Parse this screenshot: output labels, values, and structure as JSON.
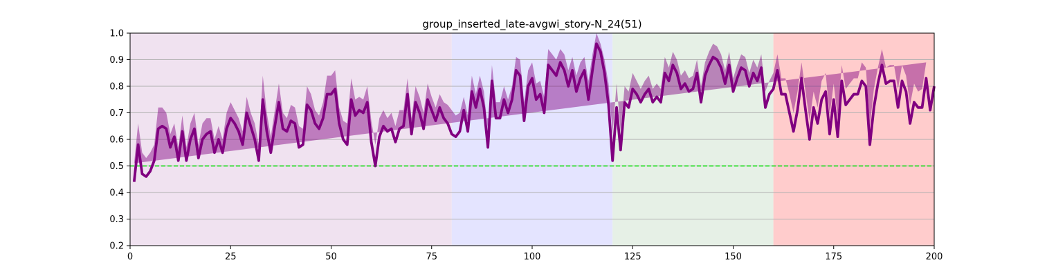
{
  "chart_data": {
    "type": "line",
    "title": "group_inserted_late-avgwi_story-N_24(51)",
    "xlabel": "",
    "ylabel": "",
    "xlim": [
      0,
      200
    ],
    "ylim": [
      0.2,
      1.0
    ],
    "xticks": [
      "0",
      "25",
      "50",
      "75",
      "100",
      "125",
      "150",
      "175",
      "200"
    ],
    "yticks": [
      "0.2",
      "0.3",
      "0.4",
      "0.5",
      "0.6",
      "0.7",
      "0.8",
      "0.9",
      "1.0"
    ],
    "grid": "horizontal",
    "legend": "none",
    "regions": [
      {
        "x0": 0,
        "x1": 80,
        "color": "#f0e2f0"
      },
      {
        "x0": 80,
        "x1": 120,
        "color": "#e4e4ff"
      },
      {
        "x0": 120,
        "x1": 160,
        "color": "#e6f0e6"
      },
      {
        "x0": 160,
        "x1": 200,
        "color": "#ffcccc"
      }
    ],
    "reference_line": {
      "y": 0.5,
      "color": "#22dd22",
      "style": "dashed"
    },
    "series": [
      {
        "line_color": "#800080",
        "band_color": "#800080",
        "x": [
          1,
          2,
          3,
          4,
          5,
          6,
          7,
          8,
          9,
          10,
          11,
          12,
          13,
          14,
          15,
          16,
          17,
          18,
          19,
          20,
          21,
          22,
          23,
          24,
          25,
          26,
          27,
          28,
          29,
          30,
          31,
          32,
          33,
          34,
          35,
          36,
          37,
          38,
          39,
          40,
          41,
          42,
          43,
          44,
          45,
          46,
          47,
          48,
          49,
          50,
          51,
          52,
          53,
          54,
          55,
          56,
          57,
          58,
          59,
          60,
          61,
          62,
          63,
          64,
          65,
          66,
          67,
          68,
          69,
          70,
          71,
          72,
          73,
          74,
          75,
          76,
          77,
          78,
          79,
          80,
          81,
          82,
          83,
          84,
          85,
          86,
          87,
          88,
          89,
          90,
          91,
          92,
          93,
          94,
          95,
          96,
          97,
          98,
          99,
          100,
          101,
          102,
          103,
          104,
          105,
          106,
          107,
          108,
          109,
          110,
          111,
          112,
          113,
          114,
          115,
          116,
          117,
          118,
          119,
          120,
          121,
          122,
          123,
          124,
          125,
          126,
          127,
          128,
          129,
          130,
          131,
          132,
          133,
          134,
          135,
          136,
          137,
          138,
          139,
          140,
          141,
          142,
          143,
          144,
          145,
          146,
          147,
          148,
          149,
          150,
          151,
          152,
          153,
          154,
          155,
          156,
          157,
          158,
          159,
          160,
          161,
          162,
          163,
          164,
          165,
          166,
          167,
          168,
          169,
          170,
          171,
          172,
          173,
          174,
          175,
          176,
          177,
          178,
          179,
          180,
          181,
          182,
          183,
          184,
          185,
          186,
          187,
          188,
          189,
          190,
          191,
          192,
          193,
          194,
          195,
          196,
          197,
          198,
          199,
          200
        ],
        "y": [
          0.44,
          0.58,
          0.47,
          0.46,
          0.48,
          0.52,
          0.64,
          0.65,
          0.64,
          0.57,
          0.61,
          0.52,
          0.63,
          0.52,
          0.6,
          0.64,
          0.53,
          0.6,
          0.62,
          0.63,
          0.55,
          0.6,
          0.55,
          0.64,
          0.68,
          0.66,
          0.63,
          0.58,
          0.7,
          0.65,
          0.6,
          0.52,
          0.75,
          0.63,
          0.55,
          0.65,
          0.74,
          0.64,
          0.63,
          0.67,
          0.66,
          0.57,
          0.58,
          0.73,
          0.71,
          0.66,
          0.64,
          0.68,
          0.77,
          0.77,
          0.79,
          0.66,
          0.6,
          0.58,
          0.75,
          0.69,
          0.71,
          0.7,
          0.74,
          0.59,
          0.5,
          0.61,
          0.65,
          0.63,
          0.64,
          0.59,
          0.64,
          0.65,
          0.77,
          0.62,
          0.74,
          0.7,
          0.64,
          0.75,
          0.71,
          0.67,
          0.72,
          0.68,
          0.66,
          0.62,
          0.61,
          0.63,
          0.71,
          0.63,
          0.78,
          0.72,
          0.79,
          0.72,
          0.57,
          0.82,
          0.68,
          0.68,
          0.75,
          0.7,
          0.75,
          0.86,
          0.84,
          0.67,
          0.8,
          0.83,
          0.75,
          0.77,
          0.7,
          0.88,
          0.86,
          0.84,
          0.89,
          0.86,
          0.8,
          0.86,
          0.78,
          0.83,
          0.86,
          0.75,
          0.86,
          0.96,
          0.93,
          0.85,
          0.73,
          0.52,
          0.72,
          0.56,
          0.74,
          0.72,
          0.79,
          0.77,
          0.74,
          0.77,
          0.79,
          0.74,
          0.76,
          0.74,
          0.85,
          0.82,
          0.88,
          0.85,
          0.79,
          0.81,
          0.78,
          0.79,
          0.85,
          0.74,
          0.84,
          0.88,
          0.91,
          0.9,
          0.87,
          0.81,
          0.88,
          0.78,
          0.83,
          0.87,
          0.86,
          0.8,
          0.85,
          0.82,
          0.87,
          0.72,
          0.77,
          0.79,
          0.86,
          0.77,
          0.77,
          0.7,
          0.63,
          0.71,
          0.83,
          0.71,
          0.6,
          0.72,
          0.66,
          0.75,
          0.78,
          0.62,
          0.75,
          0.61,
          0.82,
          0.73,
          0.75,
          0.77,
          0.77,
          0.82,
          0.8,
          0.58,
          0.72,
          0.81,
          0.88,
          0.81,
          0.82,
          0.82,
          0.72,
          0.82,
          0.78,
          0.66,
          0.74,
          0.72,
          0.72,
          0.83,
          0.71,
          0.8
        ],
        "band_halfwidth": [
          0.07,
          0.08,
          0.08,
          0.07,
          0.07,
          0.06,
          0.08,
          0.07,
          0.06,
          0.05,
          0.05,
          0.05,
          0.06,
          0.05,
          0.06,
          0.06,
          0.05,
          0.06,
          0.06,
          0.05,
          0.05,
          0.05,
          0.05,
          0.06,
          0.06,
          0.05,
          0.05,
          0.05,
          0.06,
          0.05,
          0.06,
          0.06,
          0.09,
          0.07,
          0.06,
          0.06,
          0.07,
          0.06,
          0.05,
          0.06,
          0.06,
          0.08,
          0.06,
          0.07,
          0.06,
          0.05,
          0.05,
          0.06,
          0.07,
          0.07,
          0.07,
          0.06,
          0.07,
          0.08,
          0.08,
          0.06,
          0.05,
          0.05,
          0.06,
          0.08,
          0.08,
          0.07,
          0.06,
          0.05,
          0.06,
          0.06,
          0.07,
          0.06,
          0.06,
          0.06,
          0.06,
          0.06,
          0.06,
          0.06,
          0.05,
          0.05,
          0.05,
          0.06,
          0.07,
          0.09,
          0.08,
          0.07,
          0.05,
          0.06,
          0.06,
          0.05,
          0.05,
          0.06,
          0.06,
          0.06,
          0.06,
          0.06,
          0.05,
          0.05,
          0.05,
          0.05,
          0.06,
          0.07,
          0.06,
          0.06,
          0.06,
          0.05,
          0.06,
          0.06,
          0.06,
          0.06,
          0.05,
          0.06,
          0.06,
          0.05,
          0.06,
          0.06,
          0.05,
          0.07,
          0.06,
          0.04,
          0.03,
          0.05,
          0.08,
          0.1,
          0.09,
          0.07,
          0.06,
          0.06,
          0.06,
          0.05,
          0.05,
          0.05,
          0.05,
          0.05,
          0.05,
          0.05,
          0.06,
          0.05,
          0.05,
          0.05,
          0.05,
          0.05,
          0.05,
          0.05,
          0.05,
          0.06,
          0.05,
          0.05,
          0.05,
          0.05,
          0.05,
          0.05,
          0.05,
          0.05,
          0.05,
          0.05,
          0.05,
          0.05,
          0.05,
          0.05,
          0.05,
          0.06,
          0.05,
          0.06,
          0.06,
          0.06,
          0.06,
          0.07,
          0.07,
          0.07,
          0.06,
          0.07,
          0.07,
          0.06,
          0.06,
          0.07,
          0.07,
          0.07,
          0.06,
          0.07,
          0.06,
          0.06,
          0.06,
          0.06,
          0.06,
          0.07,
          0.07,
          0.07,
          0.07,
          0.06,
          0.06,
          0.06,
          0.06,
          0.06,
          0.07,
          0.06,
          0.06,
          0.07,
          0.07,
          0.06,
          0.07,
          0.06
        ]
      }
    ]
  }
}
